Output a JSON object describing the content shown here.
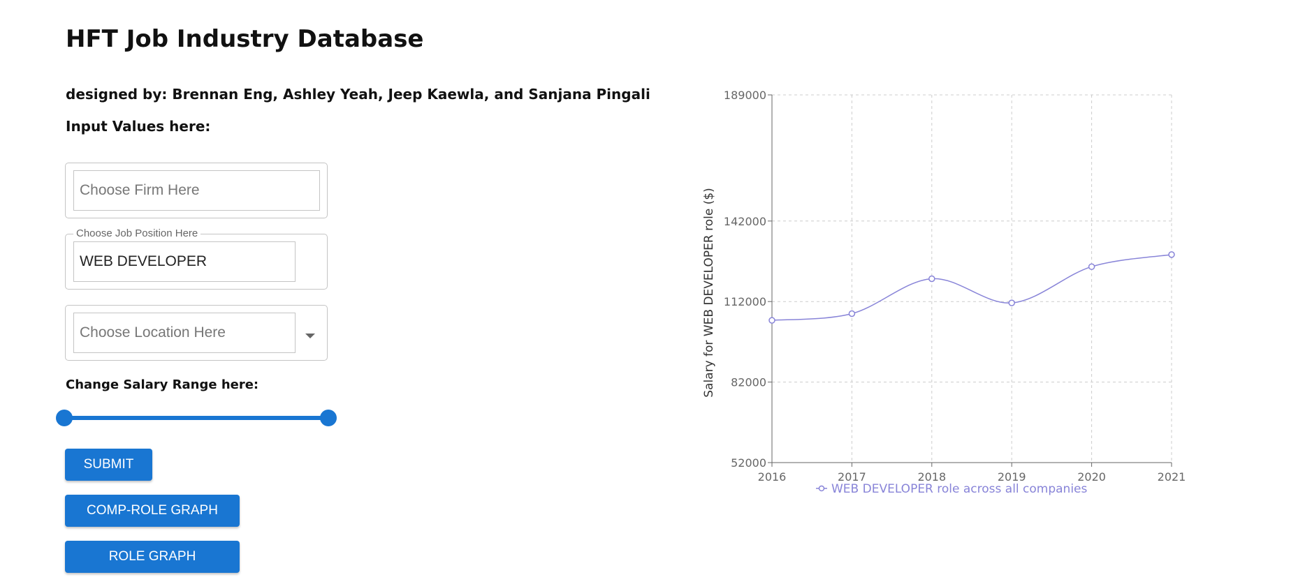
{
  "header": {
    "title": "HFT Job Industry Database",
    "designers": "designed by: Brennan Eng, Ashley Yeah, Jeep Kaewla, and Sanjana Pingali",
    "input_label": "Input Values here:"
  },
  "form": {
    "firm": {
      "placeholder": "Choose Firm Here",
      "value": ""
    },
    "job": {
      "label": "Choose Job Position Here",
      "value": "WEB DEVELOPER"
    },
    "location": {
      "placeholder": "Choose Location Here",
      "value": ""
    },
    "salary_label": "Change Salary Range here:",
    "salary_range": {
      "low_fraction": 0.0,
      "high_fraction": 1.0
    }
  },
  "buttons": {
    "submit": "SUBMIT",
    "comp_role_graph": "COMP-ROLE GRAPH",
    "role_graph": "ROLE GRAPH"
  },
  "colors": {
    "accent": "#1976d2",
    "series": "#8884d8"
  },
  "chart_data": {
    "type": "line",
    "x": [
      "2016",
      "2017",
      "2018",
      "2019",
      "2020",
      "2021"
    ],
    "series": [
      {
        "name": "WEB DEVELOPER role across all companies",
        "values": [
          105000,
          107500,
          120500,
          111500,
          125000,
          129500
        ]
      }
    ],
    "ylabel": "Salary for WEB DEVELOPER role ($)",
    "yticks": [
      52000,
      82000,
      112000,
      142000,
      189000
    ],
    "ylim": [
      52000,
      189000
    ],
    "grid": true,
    "legend": "bottom"
  }
}
